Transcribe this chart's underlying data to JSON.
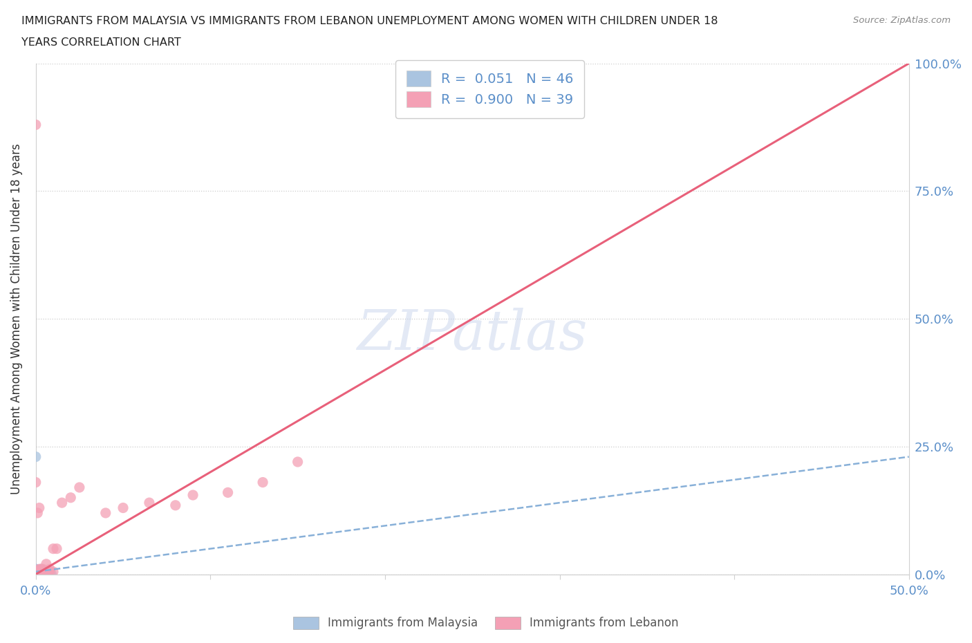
{
  "title_line1": "IMMIGRANTS FROM MALAYSIA VS IMMIGRANTS FROM LEBANON UNEMPLOYMENT AMONG WOMEN WITH CHILDREN UNDER 18",
  "title_line2": "YEARS CORRELATION CHART",
  "source_text": "Source: ZipAtlas.com",
  "ylabel": "Unemployment Among Women with Children Under 18 years",
  "xlim": [
    0.0,
    0.5
  ],
  "ylim": [
    0.0,
    1.0
  ],
  "malaysia_R": 0.051,
  "malaysia_N": 46,
  "lebanon_R": 0.9,
  "lebanon_N": 39,
  "malaysia_color": "#aac4e0",
  "lebanon_color": "#f4a0b5",
  "malaysia_line_color": "#88b0d8",
  "lebanon_line_color": "#e8607a",
  "watermark": "ZIPatlas",
  "background_color": "#ffffff",
  "malaysia_x": [
    0.0,
    0.0,
    0.0,
    0.001,
    0.001,
    0.002,
    0.002,
    0.003,
    0.003,
    0.004,
    0.004,
    0.005,
    0.005,
    0.006,
    0.006,
    0.007,
    0.007,
    0.008,
    0.008,
    0.009,
    0.0,
    0.001,
    0.002,
    0.003,
    0.001,
    0.002,
    0.003,
    0.004,
    0.005,
    0.001,
    0.0,
    0.001,
    0.002,
    0.003,
    0.004,
    0.002,
    0.001,
    0.0,
    0.002,
    0.001,
    0.0,
    0.001,
    0.003,
    0.0,
    0.0,
    0.0
  ],
  "malaysia_y": [
    0.0,
    0.005,
    0.01,
    0.0,
    0.005,
    0.0,
    0.005,
    0.0,
    0.005,
    0.0,
    0.005,
    0.0,
    0.005,
    0.0,
    0.005,
    0.0,
    0.005,
    0.0,
    0.005,
    0.0,
    0.23,
    0.0,
    0.0,
    0.01,
    0.0,
    0.005,
    0.0,
    0.0,
    0.0,
    0.005,
    0.0,
    0.0,
    0.005,
    0.0,
    0.005,
    0.0,
    0.0,
    0.005,
    0.0,
    0.0,
    0.0,
    0.0,
    0.0,
    0.0,
    0.005,
    0.01
  ],
  "lebanon_x": [
    0.0,
    0.0,
    0.001,
    0.001,
    0.002,
    0.002,
    0.003,
    0.003,
    0.004,
    0.004,
    0.005,
    0.005,
    0.006,
    0.007,
    0.008,
    0.01,
    0.012,
    0.015,
    0.02,
    0.025,
    0.0,
    0.001,
    0.002,
    0.003,
    0.005,
    0.008,
    0.01,
    0.0,
    0.002,
    0.001,
    0.13,
    0.08,
    0.065,
    0.09,
    0.11,
    0.15,
    0.04,
    0.05,
    0.0
  ],
  "lebanon_y": [
    0.0,
    0.005,
    0.0,
    0.005,
    0.0,
    0.005,
    0.0,
    0.005,
    0.0,
    0.01,
    0.0,
    0.005,
    0.02,
    0.005,
    0.01,
    0.05,
    0.05,
    0.14,
    0.15,
    0.17,
    0.0,
    0.005,
    0.01,
    0.01,
    0.0,
    0.005,
    0.005,
    0.18,
    0.13,
    0.12,
    0.18,
    0.135,
    0.14,
    0.155,
    0.16,
    0.22,
    0.12,
    0.13,
    0.88
  ],
  "lebanon_line_x": [
    0.0,
    0.5
  ],
  "lebanon_line_y": [
    0.0,
    1.0
  ],
  "malaysia_line_x": [
    0.0,
    0.5
  ],
  "malaysia_line_y": [
    0.005,
    0.23
  ]
}
